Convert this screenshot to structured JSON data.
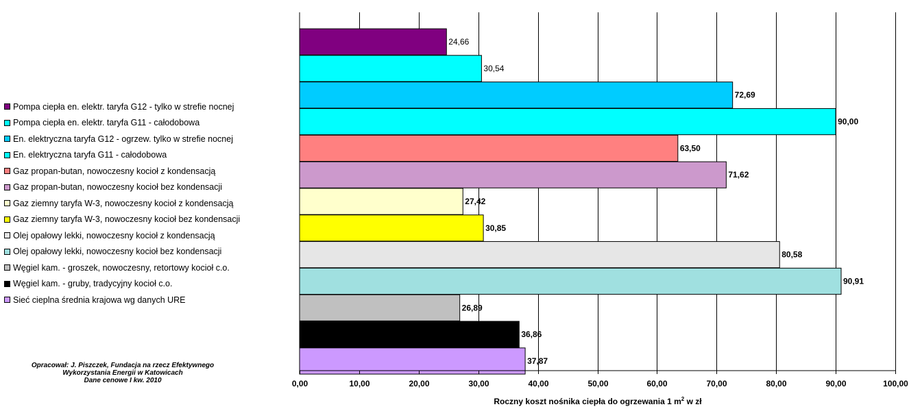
{
  "chart_data": {
    "type": "bar",
    "orientation": "horizontal",
    "xlim": [
      0,
      100
    ],
    "x_ticks": [
      "0,00",
      "10,00",
      "20,00",
      "30,00",
      "40,00",
      "50,00",
      "60,00",
      "70,00",
      "80,00",
      "90,00",
      "100,00"
    ],
    "grid": "vertical major gridlines",
    "legend_position": "left",
    "xlabel_parts": {
      "before": "Roczny koszt nośnika ciepła do ogrzewania 1 m",
      "sup": "2",
      "after": " w zł"
    },
    "series": [
      {
        "name": "Pompa ciepła en. elektr. taryfa G12 - tylko w strefie nocnej",
        "value": 24.66,
        "label": "24,66",
        "color": "#800080",
        "label_bold": false
      },
      {
        "name": "Pompa ciepła en. elektr. taryfa G11 - całodobowa",
        "value": 30.54,
        "label": "30,54",
        "color": "#00FFFF",
        "label_bold": false
      },
      {
        "name": "En. elektryczna taryfa G12 - ogrzew. tylko w strefie nocnej",
        "value": 72.69,
        "label": "72,69",
        "color": "#00CCFF",
        "label_bold": true
      },
      {
        "name": "En. elektryczna taryfa G11 - całodobowa",
        "value": 90.0,
        "label": "90,00",
        "color": "#00FFFF",
        "label_bold": true
      },
      {
        "name": "Gaz propan-butan, nowoczesny kocioł z kondensacją",
        "value": 63.5,
        "label": "63,50",
        "color": "#FF8080",
        "label_bold": true
      },
      {
        "name": "Gaz propan-butan, nowoczesny kocioł bez kondensacji",
        "value": 71.62,
        "label": "71,62",
        "color": "#CC99CC",
        "label_bold": true
      },
      {
        "name": "Gaz ziemny taryfa W-3, nowoczesny kocioł z kondensacją",
        "value": 27.42,
        "label": "27,42",
        "color": "#FFFFCC",
        "label_bold": true
      },
      {
        "name": "Gaz ziemny taryfa W-3, nowoczesny kocioł bez kondensacji",
        "value": 30.85,
        "label": "30,85",
        "color": "#FFFF00",
        "label_bold": true
      },
      {
        "name": "Olej opałowy lekki, nowoczesny kocioł z kondensacją",
        "value": 80.58,
        "label": "80,58",
        "color": "#E6E6E6",
        "label_bold": true
      },
      {
        "name": "Olej opałowy lekki, nowoczesny kocioł bez kondensacji",
        "value": 90.91,
        "label": "90,91",
        "color": "#A0E0E0",
        "label_bold": true
      },
      {
        "name": "Węgiel kam. - groszek, nowoczesny, retortowy kocioł c.o.",
        "value": 26.89,
        "label": "26,89",
        "color": "#C0C0C0",
        "label_bold": true
      },
      {
        "name": "Węgiel kam. - gruby, tradycyjny kocioł c.o.",
        "value": 36.86,
        "label": "36,86",
        "color": "#000000",
        "label_bold": true
      },
      {
        "name": "Sieć cieplna średnia krajowa wg danych URE",
        "value": 37.87,
        "label": "37,87",
        "color": "#CC99FF",
        "label_bold": true
      }
    ]
  },
  "credits": {
    "line1": "Opracował: J. Piszczek, Fundacja na rzecz Efektywnego",
    "line2": "Wykorzystania Energii w Katowicach",
    "line3": "Dane cenowe I kw. 2010"
  }
}
